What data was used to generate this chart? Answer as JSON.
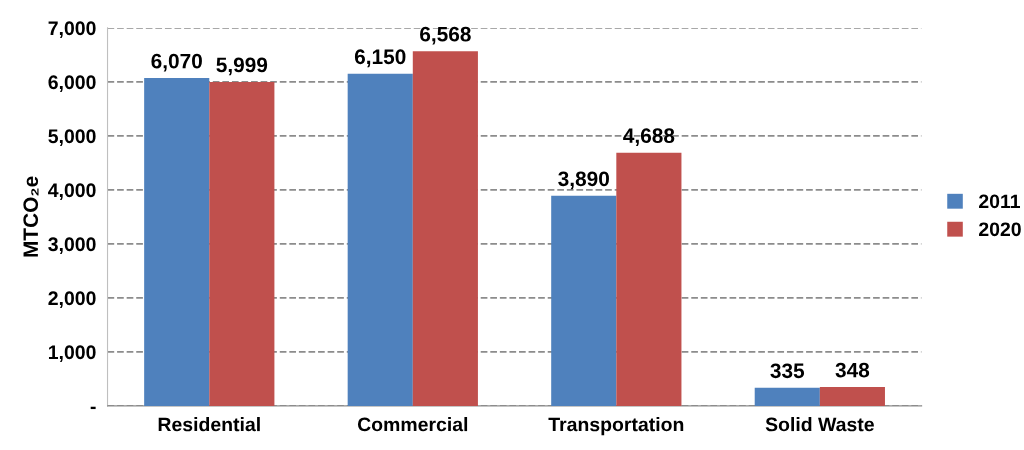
{
  "chart_data": {
    "type": "bar",
    "ylabel": "MTCO₂e",
    "categories": [
      "Residential",
      "Commercial",
      "Transportation",
      "Solid Waste"
    ],
    "series": [
      {
        "name": "2011",
        "color": "#4f81bd",
        "values": [
          6070,
          6150,
          3890,
          335
        ],
        "value_labels": [
          "6,070",
          "6,150",
          "3,890",
          "335"
        ]
      },
      {
        "name": "2020",
        "color": "#c0504d",
        "values": [
          5999,
          6568,
          4688,
          348
        ],
        "value_labels": [
          "5,999",
          "6,568",
          "4,688",
          "348"
        ]
      }
    ],
    "ylim": [
      0,
      7000
    ],
    "yticks": [
      {
        "value": 0,
        "label": "-"
      },
      {
        "value": 1000,
        "label": "1,000"
      },
      {
        "value": 2000,
        "label": "2,000"
      },
      {
        "value": 3000,
        "label": "3,000"
      },
      {
        "value": 4000,
        "label": "4,000"
      },
      {
        "value": 5000,
        "label": "5,000"
      },
      {
        "value": 6000,
        "label": "6,000"
      },
      {
        "value": 7000,
        "label": "7,000"
      }
    ],
    "grid": "y",
    "legend": "right"
  }
}
